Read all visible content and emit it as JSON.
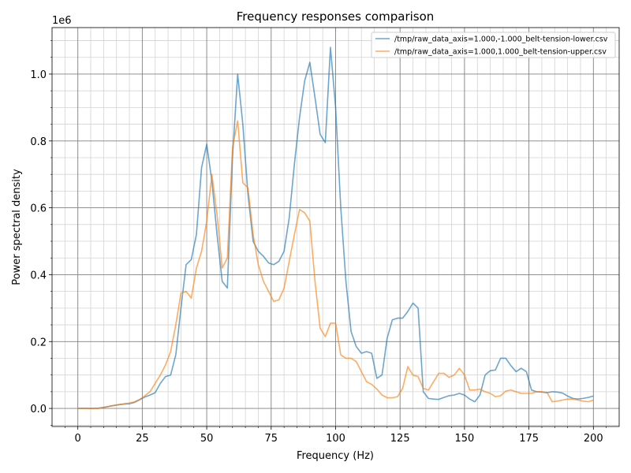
{
  "chart_data": {
    "type": "line",
    "title": "Frequency responses comparison",
    "x_label": "Frequency (Hz)",
    "y_label": "Power spectral density",
    "y_offset_text": "1e6",
    "x": [
      0,
      2,
      4,
      6,
      8,
      10,
      12,
      14,
      16,
      18,
      20,
      22,
      24,
      26,
      28,
      30,
      32,
      34,
      36,
      38,
      40,
      42,
      44,
      46,
      48,
      50,
      52,
      54,
      56,
      58,
      60,
      62,
      64,
      66,
      68,
      70,
      72,
      74,
      76,
      78,
      80,
      82,
      84,
      86,
      88,
      90,
      92,
      94,
      96,
      98,
      100,
      102,
      104,
      106,
      108,
      110,
      112,
      114,
      116,
      118,
      120,
      122,
      124,
      126,
      128,
      130,
      132,
      134,
      136,
      138,
      140,
      142,
      144,
      146,
      148,
      150,
      152,
      154,
      156,
      158,
      160,
      162,
      164,
      166,
      168,
      170,
      172,
      174,
      176,
      178,
      180,
      182,
      184,
      186,
      188,
      190,
      192,
      194,
      196,
      198,
      200
    ],
    "series": [
      {
        "name": "/tmp/raw_data_axis=1.000,-1.000_belt-tension-lower.csv",
        "color": "#1f77b4",
        "values": [
          0,
          0,
          0,
          0,
          1000,
          3000,
          6000,
          9000,
          11000,
          13000,
          14000,
          18000,
          26000,
          34000,
          40000,
          47000,
          75000,
          95000,
          100000,
          160000,
          300000,
          430000,
          445000,
          520000,
          720000,
          790000,
          680000,
          520000,
          380000,
          360000,
          750000,
          1000000,
          850000,
          640000,
          500000,
          470000,
          455000,
          435000,
          430000,
          440000,
          470000,
          570000,
          730000,
          870000,
          980000,
          1035000,
          930000,
          820000,
          795000,
          1080000,
          900000,
          600000,
          380000,
          230000,
          185000,
          165000,
          170000,
          165000,
          90000,
          100000,
          210000,
          265000,
          270000,
          270000,
          290000,
          315000,
          300000,
          50000,
          30000,
          28000,
          27000,
          33000,
          38000,
          40000,
          45000,
          40000,
          28000,
          20000,
          40000,
          100000,
          113000,
          115000,
          150000,
          150000,
          128000,
          110000,
          120000,
          110000,
          55000,
          50000,
          49000,
          47000,
          50000,
          49000,
          46000,
          37000,
          30000,
          28000,
          30000,
          33000,
          37000
        ]
      },
      {
        "name": "/tmp/raw_data_axis=1.000,1.000_belt-tension-upper.csv",
        "color": "#ff7f0e",
        "values": [
          0,
          0,
          0,
          0,
          0,
          3000,
          6000,
          9000,
          12000,
          14000,
          16000,
          20000,
          27000,
          38000,
          50000,
          75000,
          100000,
          130000,
          170000,
          250000,
          345000,
          350000,
          330000,
          420000,
          470000,
          560000,
          700000,
          580000,
          420000,
          450000,
          780000,
          860000,
          675000,
          660000,
          520000,
          430000,
          380000,
          350000,
          320000,
          325000,
          360000,
          440000,
          520000,
          595000,
          585000,
          560000,
          380000,
          240000,
          215000,
          255000,
          255000,
          160000,
          150000,
          150000,
          140000,
          110000,
          80000,
          72000,
          58000,
          40000,
          32000,
          32000,
          35000,
          60000,
          125000,
          100000,
          95000,
          60000,
          55000,
          80000,
          105000,
          105000,
          93000,
          100000,
          120000,
          100000,
          55000,
          55000,
          58000,
          50000,
          45000,
          35000,
          38000,
          52000,
          55000,
          50000,
          45000,
          45000,
          45000,
          50000,
          50000,
          48000,
          20000,
          22000,
          25000,
          28000,
          28000,
          25000,
          22000,
          20000,
          25000
        ]
      }
    ],
    "xlim": [
      -10,
      210
    ],
    "ylim": [
      -54000,
      1139000
    ],
    "xticks": [
      0,
      25,
      50,
      75,
      100,
      125,
      150,
      175,
      200
    ],
    "yticks": [
      {
        "value": 0,
        "label": "0.0"
      },
      {
        "value": 200000,
        "label": "0.2"
      },
      {
        "value": 400000,
        "label": "0.4"
      },
      {
        "value": 600000,
        "label": "0.6"
      },
      {
        "value": 800000,
        "label": "0.8"
      },
      {
        "value": 1000000,
        "label": "1.0"
      }
    ],
    "xticks_minor": [
      -5,
      5,
      10,
      15,
      20,
      30,
      35,
      40,
      45,
      55,
      60,
      65,
      70,
      80,
      85,
      90,
      95,
      105,
      110,
      115,
      120,
      130,
      135,
      140,
      145,
      155,
      160,
      165,
      170,
      180,
      185,
      190,
      195,
      205
    ],
    "yticks_minor": [
      -50000,
      50000,
      100000,
      150000,
      250000,
      300000,
      350000,
      450000,
      500000,
      550000,
      650000,
      700000,
      750000,
      850000,
      900000,
      950000,
      1050000,
      1100000
    ],
    "grid": true,
    "minor_grid": true,
    "legend": "upper right"
  }
}
